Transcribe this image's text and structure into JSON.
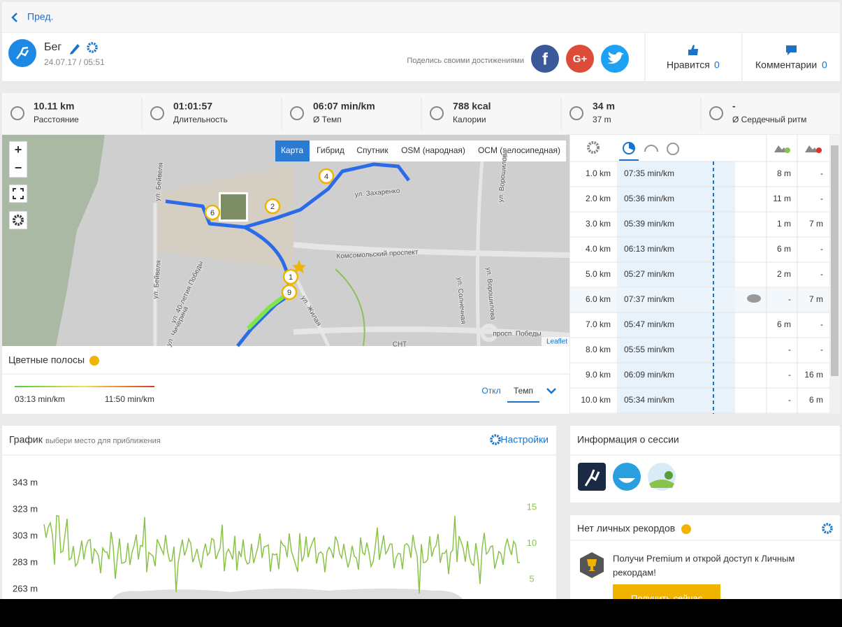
{
  "nav": {
    "back": "Пред."
  },
  "activity": {
    "title": "Бег",
    "date": "24.07.17 / 05:51"
  },
  "share": {
    "label": "Поделись своими достижениями"
  },
  "likes": {
    "label": "Нравится",
    "count": 0
  },
  "comments": {
    "label": "Комментарии",
    "count": 0
  },
  "stats": [
    {
      "value": "10.11 km",
      "label": "Расстояние"
    },
    {
      "value": "01:01:57",
      "label": "Длительность"
    },
    {
      "value": "06:07 min/km",
      "label": "Ø Темп"
    },
    {
      "value": "788 kcal",
      "label": "Калории"
    },
    {
      "value": "34 m",
      "label": "37 m"
    },
    {
      "value": "-",
      "label": "Ø Сердечный ритм"
    }
  ],
  "map": {
    "layers": [
      "Карта",
      "Гибрид",
      "Спутник",
      "OSM (народная)",
      "OCM (велосипедная)"
    ],
    "streets": [
      "ул. Захаренко",
      "Комсомольский проспект",
      "ул. Бейвеля",
      "ул. Бейвеля",
      "ул. 40-летия Победы",
      "ул. Чичерина",
      "ул. Жилая",
      "ул. Ворошилова",
      "ул. Ворошилова",
      "ул. Солнечная",
      "просп. Победы",
      "СНТ"
    ],
    "markers": [
      1,
      2,
      4,
      6,
      9
    ],
    "attribution": "Leaflet"
  },
  "color_bands": {
    "title": "Цветные полосы",
    "min": "03:13 min/km",
    "max": "11:50 min/km",
    "options": [
      "Откл",
      "Темп"
    ]
  },
  "splits": {
    "rows": [
      [
        "1.0 km",
        "07:35 min/km",
        "8 m",
        "-"
      ],
      [
        "2.0 km",
        "05:36 min/km",
        "11 m",
        "-"
      ],
      [
        "3.0 km",
        "05:39 min/km",
        "1 m",
        "7 m"
      ],
      [
        "4.0 km",
        "06:13 min/km",
        "6 m",
        "-"
      ],
      [
        "5.0 km",
        "05:27 min/km",
        "2 m",
        "-"
      ],
      [
        "6.0 km",
        "07:37 min/km",
        "-",
        "7 m"
      ],
      [
        "7.0 km",
        "05:47 min/km",
        "6 m",
        "-"
      ],
      [
        "8.0 km",
        "05:55 min/km",
        "-",
        "-"
      ],
      [
        "9.0 km",
        "06:09 min/km",
        "-",
        "16 m"
      ],
      [
        "10.0 km",
        "05:34 min/km",
        "-",
        "6 m"
      ]
    ]
  },
  "graph": {
    "title": "График",
    "hint": "выбери место для приближения",
    "settings": "Настройки",
    "yticks": [
      "343 m",
      "323 m",
      "303 m",
      "283 m",
      "263 m"
    ],
    "y2ticks": [
      15,
      10,
      5
    ]
  },
  "session": {
    "title": "Информация о сессии"
  },
  "records": {
    "title": "Нет личных рекордов",
    "text": [
      "Получи Premium и открой доступ к Личным",
      "рекордам!"
    ],
    "button": "Получить сейчас"
  }
}
